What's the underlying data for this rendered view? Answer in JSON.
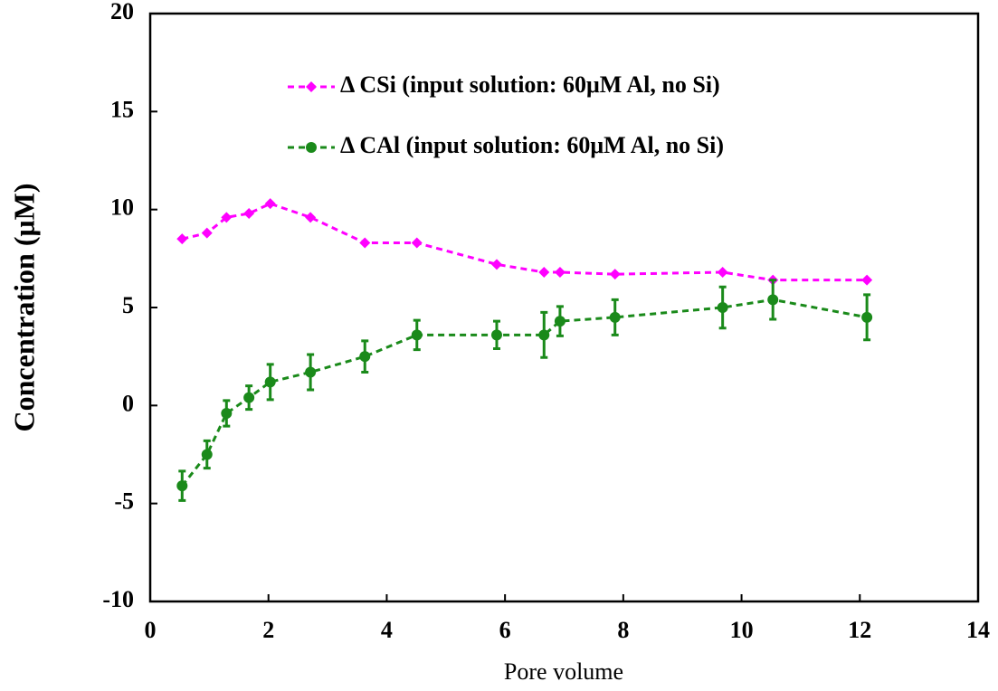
{
  "chart_data": {
    "type": "line",
    "xlabel": "Pore volume",
    "ylabel": "Concentration (μM)",
    "xlim": [
      0,
      14
    ],
    "xticks": [
      0,
      2,
      4,
      6,
      8,
      10,
      12,
      14
    ],
    "ylim": [
      -10,
      20
    ],
    "yticks": [
      -10,
      -5,
      0,
      5,
      10,
      15,
      20
    ],
    "series": [
      {
        "name": "Δ CSi (input solution: 60μM Al, no Si)",
        "color": "#ff00ff",
        "marker": "diamond",
        "x": [
          0.54,
          0.96,
          1.29,
          1.67,
          2.03,
          2.71,
          3.63,
          4.51,
          5.86,
          6.66,
          6.93,
          7.86,
          9.68,
          10.53,
          12.12
        ],
        "values": [
          8.5,
          8.8,
          9.6,
          9.8,
          10.3,
          9.6,
          8.3,
          8.3,
          7.2,
          6.8,
          6.8,
          6.7,
          6.8,
          6.4,
          6.4
        ]
      },
      {
        "name": "Δ CAl (input solution: 60μM Al, no Si)",
        "color": "#1a8a1a",
        "marker": "circle",
        "x": [
          0.54,
          0.96,
          1.29,
          1.67,
          2.03,
          2.71,
          3.63,
          4.51,
          5.86,
          6.66,
          6.93,
          7.86,
          9.68,
          10.53,
          12.12
        ],
        "values": [
          -4.1,
          -2.5,
          -0.4,
          0.4,
          1.2,
          1.7,
          2.5,
          3.6,
          3.6,
          3.6,
          4.3,
          4.5,
          5.0,
          5.4,
          4.5
        ],
        "error": [
          0.75,
          0.7,
          0.65,
          0.6,
          0.9,
          0.9,
          0.8,
          0.75,
          0.7,
          1.15,
          0.75,
          0.9,
          1.05,
          1.0,
          1.15
        ]
      }
    ]
  }
}
